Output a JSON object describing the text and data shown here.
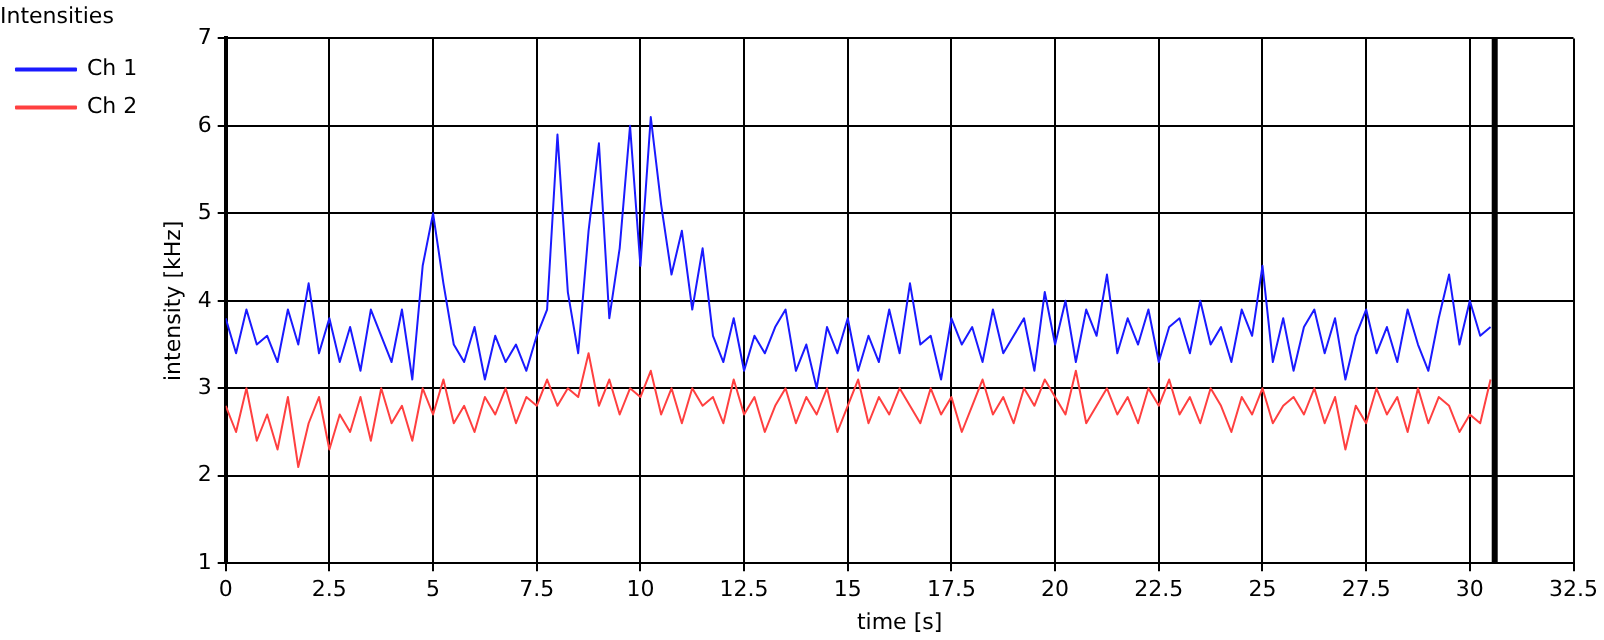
{
  "chart_data": {
    "type": "line",
    "title": "Intensities",
    "xlabel": "time [s]",
    "ylabel": "intensity [kHz]",
    "x": [
      0,
      0.25,
      0.5,
      0.75,
      1,
      1.25,
      1.5,
      1.75,
      2,
      2.25,
      2.5,
      2.75,
      3,
      3.25,
      3.5,
      3.75,
      4,
      4.25,
      4.5,
      4.75,
      5,
      5.25,
      5.5,
      5.75,
      6,
      6.25,
      6.5,
      6.75,
      7,
      7.25,
      7.5,
      7.75,
      8,
      8.25,
      8.5,
      8.75,
      9,
      9.25,
      9.5,
      9.75,
      10,
      10.25,
      10.5,
      10.75,
      11,
      11.25,
      11.5,
      11.75,
      12,
      12.25,
      12.5,
      12.75,
      13,
      13.25,
      13.5,
      13.75,
      14,
      14.25,
      14.5,
      14.75,
      15,
      15.25,
      15.5,
      15.75,
      16,
      16.25,
      16.5,
      16.75,
      17,
      17.25,
      17.5,
      17.75,
      18,
      18.25,
      18.5,
      18.75,
      19,
      19.25,
      19.5,
      19.75,
      20,
      20.25,
      20.5,
      20.75,
      21,
      21.25,
      21.5,
      21.75,
      22,
      22.25,
      22.5,
      22.75,
      23,
      23.25,
      23.5,
      23.75,
      24,
      24.25,
      24.5,
      24.75,
      25,
      25.25,
      25.5,
      25.75,
      26,
      26.25,
      26.5,
      26.75,
      27,
      27.25,
      27.5,
      27.75,
      28,
      28.25,
      28.5,
      28.75,
      29,
      29.25,
      29.5,
      29.75,
      30,
      30.25,
      30.5
    ],
    "series": [
      {
        "name": "Ch 1",
        "color": "#1a1aff",
        "values": [
          3.8,
          3.4,
          3.9,
          3.5,
          3.6,
          3.3,
          3.9,
          3.5,
          4.2,
          3.4,
          3.8,
          3.3,
          3.7,
          3.2,
          3.9,
          3.6,
          3.3,
          3.9,
          3.1,
          4.4,
          5.0,
          4.2,
          3.5,
          3.3,
          3.7,
          3.1,
          3.6,
          3.3,
          3.5,
          3.2,
          3.6,
          3.9,
          5.9,
          4.1,
          3.4,
          4.8,
          5.8,
          3.8,
          4.6,
          6.0,
          4.4,
          6.1,
          5.1,
          4.3,
          4.8,
          3.9,
          4.6,
          3.6,
          3.3,
          3.8,
          3.2,
          3.6,
          3.4,
          3.7,
          3.9,
          3.2,
          3.5,
          3.0,
          3.7,
          3.4,
          3.8,
          3.2,
          3.6,
          3.3,
          3.9,
          3.4,
          4.2,
          3.5,
          3.6,
          3.1,
          3.8,
          3.5,
          3.7,
          3.3,
          3.9,
          3.4,
          3.6,
          3.8,
          3.2,
          4.1,
          3.5,
          4.0,
          3.3,
          3.9,
          3.6,
          4.3,
          3.4,
          3.8,
          3.5,
          3.9,
          3.3,
          3.7,
          3.8,
          3.4,
          4.0,
          3.5,
          3.7,
          3.3,
          3.9,
          3.6,
          4.4,
          3.3,
          3.8,
          3.2,
          3.7,
          3.9,
          3.4,
          3.8,
          3.1,
          3.6,
          3.9,
          3.4,
          3.7,
          3.3,
          3.9,
          3.5,
          3.2,
          3.8,
          4.3,
          3.5,
          4.0,
          3.6,
          3.7
        ]
      },
      {
        "name": "Ch 2",
        "color": "#ff4040",
        "values": [
          2.8,
          2.5,
          3.0,
          2.4,
          2.7,
          2.3,
          2.9,
          2.1,
          2.6,
          2.9,
          2.3,
          2.7,
          2.5,
          2.9,
          2.4,
          3.0,
          2.6,
          2.8,
          2.4,
          3.0,
          2.7,
          3.1,
          2.6,
          2.8,
          2.5,
          2.9,
          2.7,
          3.0,
          2.6,
          2.9,
          2.8,
          3.1,
          2.8,
          3.0,
          2.9,
          3.4,
          2.8,
          3.1,
          2.7,
          3.0,
          2.9,
          3.2,
          2.7,
          3.0,
          2.6,
          3.0,
          2.8,
          2.9,
          2.6,
          3.1,
          2.7,
          2.9,
          2.5,
          2.8,
          3.0,
          2.6,
          2.9,
          2.7,
          3.0,
          2.5,
          2.8,
          3.1,
          2.6,
          2.9,
          2.7,
          3.0,
          2.8,
          2.6,
          3.0,
          2.7,
          2.9,
          2.5,
          2.8,
          3.1,
          2.7,
          2.9,
          2.6,
          3.0,
          2.8,
          3.1,
          2.9,
          2.7,
          3.2,
          2.6,
          2.8,
          3.0,
          2.7,
          2.9,
          2.6,
          3.0,
          2.8,
          3.1,
          2.7,
          2.9,
          2.6,
          3.0,
          2.8,
          2.5,
          2.9,
          2.7,
          3.0,
          2.6,
          2.8,
          2.9,
          2.7,
          3.0,
          2.6,
          2.9,
          2.3,
          2.8,
          2.6,
          3.0,
          2.7,
          2.9,
          2.5,
          3.0,
          2.6,
          2.9,
          2.8,
          2.5,
          2.7,
          2.6,
          3.1
        ]
      }
    ],
    "xlim": [
      0,
      32.5
    ],
    "xticks": [
      0,
      2.5,
      5,
      7.5,
      10,
      12.5,
      15,
      17.5,
      20,
      22.5,
      25,
      27.5,
      30,
      32.5
    ],
    "ylim": [
      1,
      7
    ],
    "yticks": [
      1,
      2,
      3,
      4,
      5,
      6,
      7
    ],
    "ref_lines": [
      {
        "axis": "x",
        "value": 30.6,
        "color": "#000000"
      }
    ],
    "grid": true,
    "legend": "top left",
    "marker": "none",
    "line_style": "solid"
  }
}
